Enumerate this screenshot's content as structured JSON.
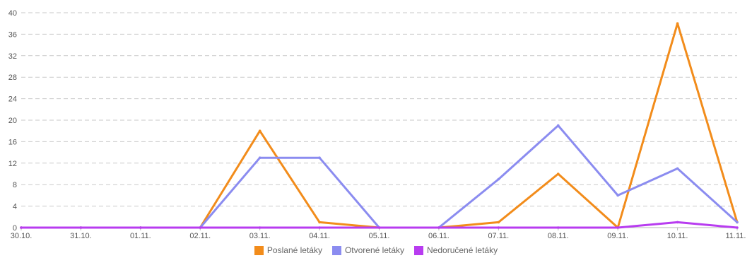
{
  "chart_data": {
    "type": "line",
    "categories": [
      "30.10.",
      "31.10.",
      "01.11.",
      "02.11.",
      "03.11.",
      "04.11.",
      "05.11.",
      "06.11.",
      "07.11.",
      "08.11.",
      "09.11.",
      "10.11.",
      "11.11."
    ],
    "ylim": [
      0,
      40
    ],
    "yticks": [
      0,
      4,
      8,
      12,
      16,
      20,
      24,
      28,
      32,
      36,
      40
    ],
    "grid": true,
    "legend": "bottom",
    "series": [
      {
        "name": "Poslané letáky",
        "color": "#f28c1b",
        "values": [
          0,
          0,
          0,
          0,
          18,
          1,
          0,
          0,
          1,
          10,
          0,
          38,
          1
        ]
      },
      {
        "name": "Otvorené letáky",
        "color": "#8b8cf0",
        "values": [
          0,
          0,
          0,
          0,
          13,
          13,
          0,
          0,
          9,
          19,
          6,
          11,
          1
        ]
      },
      {
        "name": "Nedoručené letáky",
        "color": "#b83cf0",
        "values": [
          0,
          0,
          0,
          0,
          0,
          0,
          0,
          0,
          0,
          0,
          0,
          1,
          0
        ]
      }
    ]
  }
}
